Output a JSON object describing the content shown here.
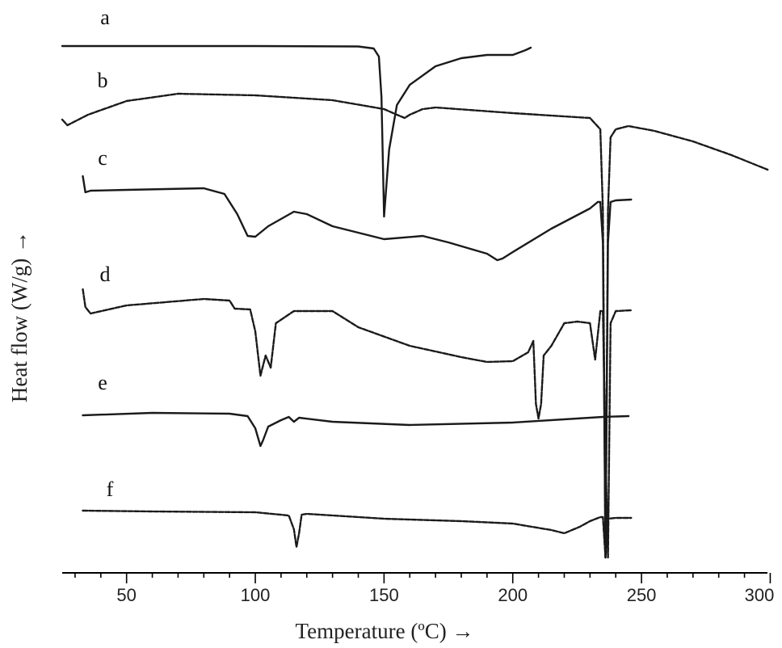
{
  "chart_data": {
    "type": "line",
    "title": "",
    "xlabel": "Temperature (ºC) →",
    "ylabel": "Heat flow (W/g) →",
    "xlim": [
      25,
      300
    ],
    "xticks": [
      50,
      100,
      150,
      200,
      250,
      300
    ],
    "y_units": "relative heat flow (curves vertically offset, no y tick labels)",
    "series": [
      {
        "name": "a",
        "x": [
          25,
          100,
          140,
          146,
          148,
          149,
          150,
          152,
          155,
          160,
          170,
          180,
          190,
          200,
          205,
          207
        ],
        "y": [
          57,
          57,
          57.5,
          60,
          70,
          120,
          268,
          185,
          130,
          105,
          82,
          72,
          68,
          68,
          62,
          59
        ]
      },
      {
        "name": "b",
        "x": [
          25,
          27,
          35,
          50,
          70,
          100,
          130,
          150,
          155,
          158,
          160,
          165,
          170,
          200,
          230,
          234,
          235,
          236,
          237,
          238,
          240,
          245,
          255,
          270,
          285,
          299
        ],
        "y": [
          148,
          155,
          142,
          125,
          116,
          118,
          124,
          135,
          142,
          146,
          142,
          135,
          133,
          140,
          146,
          160,
          260,
          690,
          260,
          170,
          160,
          156,
          162,
          175,
          192,
          210
        ]
      },
      {
        "name": "c",
        "x": [
          33,
          34,
          36,
          50,
          80,
          88,
          93,
          97,
          100,
          105,
          115,
          120,
          130,
          150,
          165,
          175,
          190,
          194,
          196,
          200,
          215,
          230,
          233,
          234,
          235,
          236,
          237,
          238,
          240,
          246
        ],
        "y": [
          218,
          238,
          236,
          235,
          233,
          240,
          265,
          292,
          293,
          280,
          262,
          265,
          280,
          296,
          292,
          300,
          314,
          322,
          320,
          312,
          283,
          258,
          250,
          250,
          300,
          690,
          300,
          250,
          248,
          247
        ]
      },
      {
        "name": "d",
        "x": [
          33,
          34,
          36,
          50,
          80,
          90,
          92,
          98,
          100,
          102,
          104,
          106,
          108,
          115,
          130,
          140,
          160,
          180,
          190,
          200,
          206,
          208,
          209,
          210,
          211,
          212,
          215,
          220,
          225,
          230,
          232,
          233,
          234,
          235,
          236,
          237,
          238,
          240,
          246
        ],
        "y": [
          358,
          380,
          388,
          378,
          370,
          372,
          382,
          383,
          410,
          465,
          440,
          455,
          400,
          385,
          385,
          405,
          428,
          442,
          448,
          447,
          436,
          422,
          500,
          518,
          500,
          440,
          428,
          400,
          398,
          400,
          445,
          415,
          385,
          385,
          560,
          690,
          400,
          385,
          384
        ]
      },
      {
        "name": "e",
        "x": [
          33,
          60,
          90,
          97,
          100,
          102,
          103,
          105,
          110,
          113,
          115,
          117,
          130,
          160,
          200,
          235,
          245
        ],
        "y": [
          514,
          511,
          512,
          515,
          530,
          552,
          545,
          528,
          520,
          516,
          522,
          517,
          522,
          526,
          523,
          516,
          515
        ]
      },
      {
        "name": "f",
        "x": [
          33,
          60,
          100,
          113,
          115,
          116,
          117,
          118,
          120,
          150,
          180,
          200,
          215,
          220,
          226,
          230,
          234,
          235,
          236,
          237,
          240,
          246
        ],
        "y": [
          632,
          633,
          634,
          638,
          655,
          677,
          660,
          637,
          636,
          642,
          645,
          648,
          656,
          660,
          652,
          645,
          640,
          640,
          690,
          642,
          641,
          641
        ]
      }
    ]
  },
  "curve_labels": [
    {
      "series": "a",
      "text": "a"
    },
    {
      "series": "b",
      "text": "b"
    },
    {
      "series": "c",
      "text": "c"
    },
    {
      "series": "d",
      "text": "d"
    },
    {
      "series": "e",
      "text": "e"
    },
    {
      "series": "f",
      "text": "f"
    }
  ]
}
